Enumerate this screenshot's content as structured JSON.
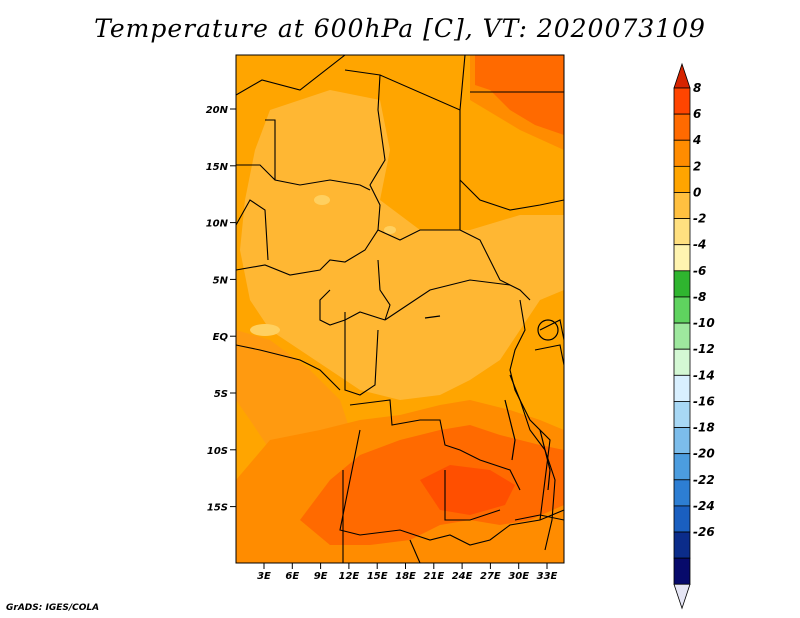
{
  "title": "Temperature at 600hPa [C], VT: 2020073109",
  "credit": "GrADS: IGES/COLA",
  "map": {
    "lat_labels": [
      "20N",
      "15N",
      "10N",
      "5N",
      "EQ",
      "5S",
      "10S",
      "15S"
    ],
    "lon_labels": [
      "3E",
      "6E",
      "9E",
      "12E",
      "15E",
      "18E",
      "21E",
      "24E",
      "27E",
      "30E",
      "33E"
    ]
  },
  "colorbar": {
    "labels": [
      "8",
      "6",
      "4",
      "2",
      "0",
      "-2",
      "-4",
      "-6",
      "-8",
      "-10",
      "-12",
      "-14",
      "-16",
      "-18",
      "-20",
      "-22",
      "-24",
      "-26"
    ],
    "colors": [
      "#ff4500",
      "#ff6a00",
      "#ff8c00",
      "#ffa500",
      "#ffc040",
      "#ffe080",
      "#fff4b0",
      "#2fb52f",
      "#5fd35f",
      "#9ee89e",
      "#d4f8d4",
      "#d9f0ff",
      "#a8d8f5",
      "#7cbdeb",
      "#4c9ddf",
      "#2d7ed3",
      "#1a5fc0",
      "#0b2c8a",
      "#070a6b"
    ],
    "top_color": "#d62400",
    "bottom_color": "#e6e6f5"
  }
}
